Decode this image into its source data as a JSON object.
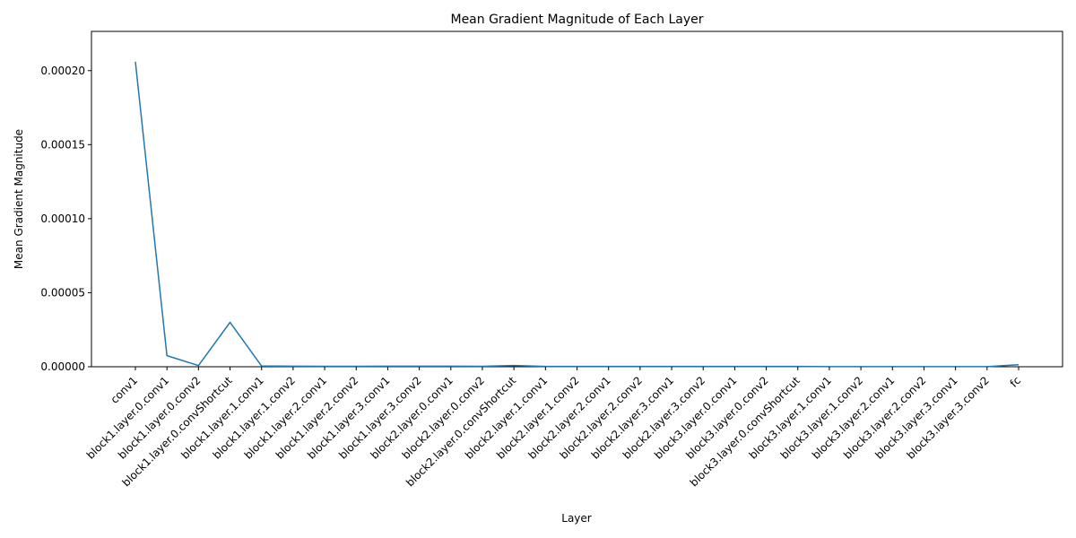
{
  "chart_data": {
    "type": "line",
    "title": "Mean Gradient Magnitude of Each Layer",
    "xlabel": "Layer",
    "ylabel": "Mean Gradient Magnitude",
    "categories": [
      "conv1",
      "block1.layer.0.conv1",
      "block1.layer.0.conv2",
      "block1.layer.0.convShortcut",
      "block1.layer.1.conv1",
      "block1.layer.1.conv2",
      "block1.layer.2.conv1",
      "block1.layer.2.conv2",
      "block1.layer.3.conv1",
      "block1.layer.3.conv2",
      "block2.layer.0.conv1",
      "block2.layer.0.conv2",
      "block2.layer.0.convShortcut",
      "block2.layer.1.conv1",
      "block2.layer.1.conv2",
      "block2.layer.2.conv1",
      "block2.layer.2.conv2",
      "block2.layer.3.conv1",
      "block2.layer.3.conv2",
      "block3.layer.0.conv1",
      "block3.layer.0.conv2",
      "block3.layer.0.convShortcut",
      "block3.layer.1.conv1",
      "block3.layer.1.conv2",
      "block3.layer.2.conv1",
      "block3.layer.2.conv2",
      "block3.layer.3.conv1",
      "block3.layer.3.conv2",
      "fc"
    ],
    "series": [
      {
        "values": [
          0.000206,
          7.5e-06,
          8e-07,
          3e-05,
          5e-07,
          4e-07,
          3e-07,
          3e-07,
          4e-07,
          4e-07,
          4e-07,
          3e-07,
          8e-07,
          2e-07,
          2e-07,
          2e-07,
          2e-07,
          2e-07,
          2e-07,
          2e-07,
          2e-07,
          2e-07,
          1e-07,
          1e-07,
          1e-07,
          1e-07,
          1e-07,
          1e-07,
          1.4e-06
        ]
      }
    ],
    "ylim": [
      0,
      0.0002265
    ],
    "yticks": [
      0,
      5e-05,
      0.0001,
      0.00015,
      0.0002
    ],
    "ytick_labels": [
      "0.00000",
      "0.00005",
      "0.00010",
      "0.00015",
      "0.00020"
    ],
    "grid": false,
    "legend": "none",
    "line_color": "#1f77b4"
  }
}
